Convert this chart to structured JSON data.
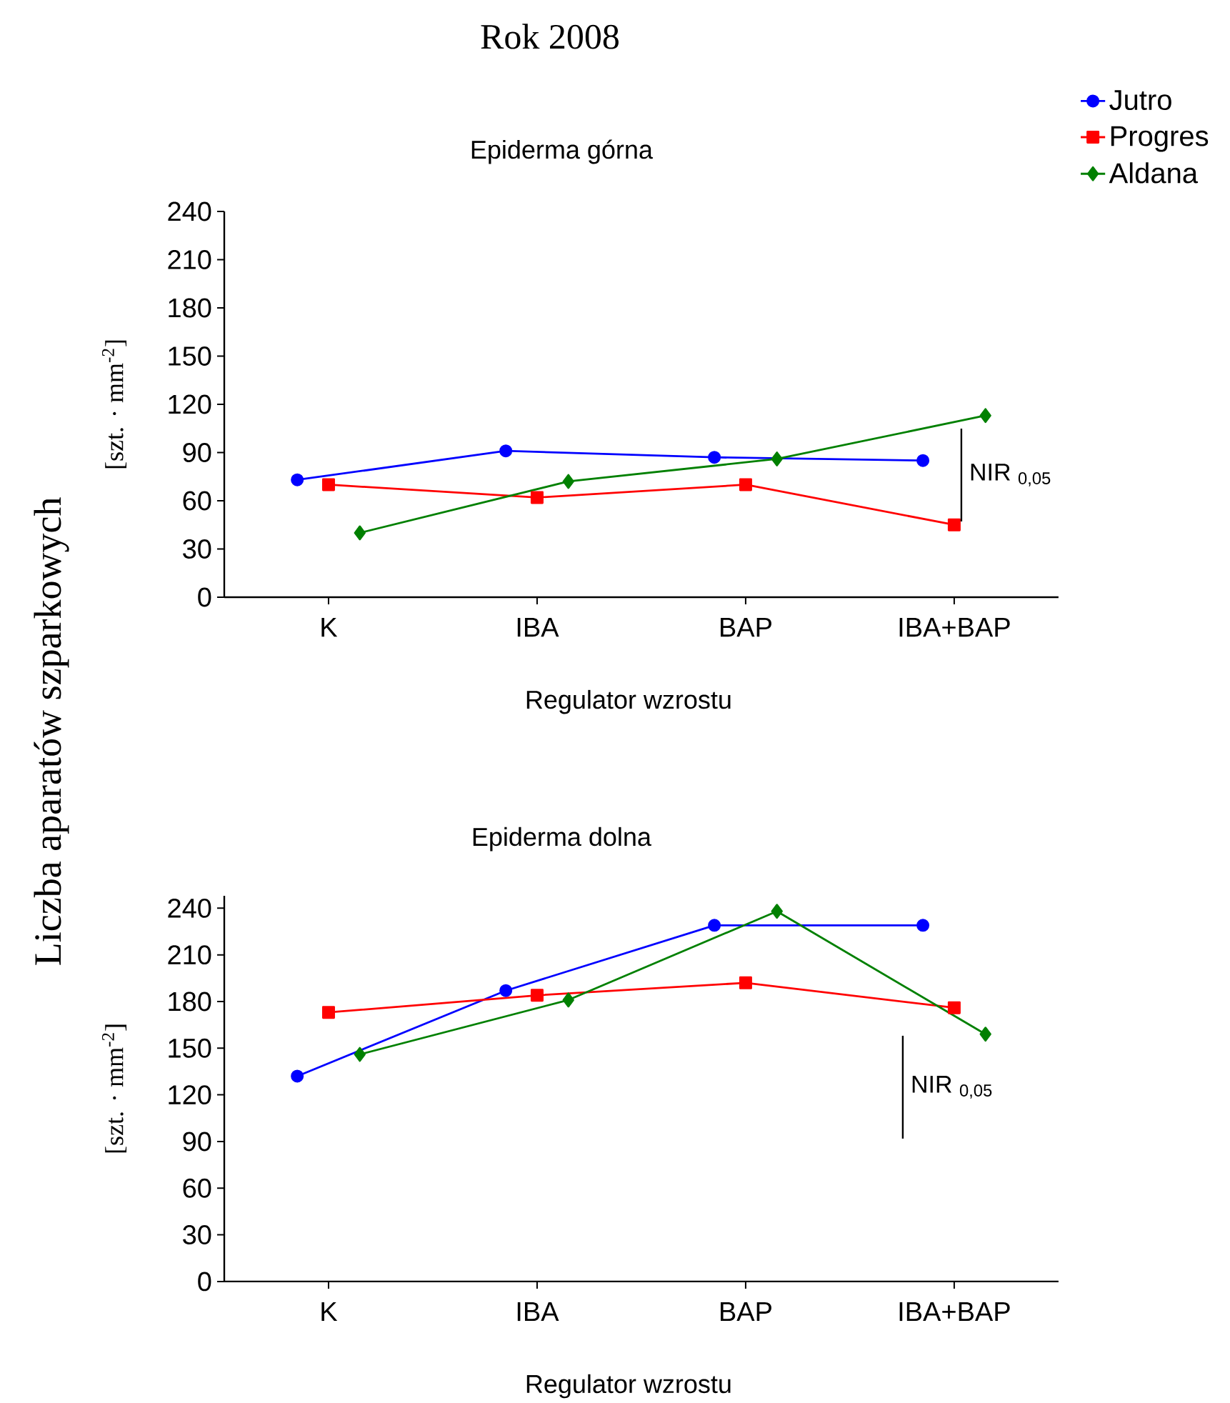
{
  "chart_data": [
    {
      "type": "line",
      "title": "Epiderma górna",
      "xlabel": "Regulator wzrostu",
      "ylabel": "[szt. · mm$^{-2}$]",
      "annotations": [
        "Rok 2008",
        "Liczba aparatów szparkowych",
        "NIR $_{0,05}$"
      ],
      "categories": [
        "K",
        "IBA",
        "BAP",
        "IBA+BAP"
      ],
      "ylim": [
        0,
        240
      ],
      "yticks": [
        0,
        30,
        60,
        90,
        120,
        150,
        180,
        210,
        240
      ],
      "legend": "top right",
      "line_style": "solid",
      "series": [
        {
          "name": "Jutro",
          "color": "#0000ff",
          "marker": "circle",
          "values": [
            73,
            91,
            87,
            85
          ]
        },
        {
          "name": "Progres",
          "color": "#ff0000",
          "marker": "square",
          "values": [
            70,
            62,
            70,
            45
          ]
        },
        {
          "name": "Aldana",
          "color": "#008000",
          "marker": "diamond",
          "values": [
            40,
            72,
            86,
            113
          ]
        }
      ]
    },
    {
      "type": "line",
      "title": "Epiderma dolna",
      "xlabel": "Regulator wzrostu",
      "ylabel": "[szt. · mm$^{-2}$]",
      "annotations": [
        "NIR $_{0,05}$"
      ],
      "categories": [
        "K",
        "IBA",
        "BAP",
        "IBA+BAP"
      ],
      "ylim": [
        0,
        248
      ],
      "yticks": [
        0,
        30,
        60,
        90,
        120,
        150,
        180,
        210,
        240
      ],
      "line_style": "solid",
      "series": [
        {
          "color": "#0000ff",
          "marker": "circle",
          "values": [
            132,
            187,
            229,
            229
          ]
        },
        {
          "color": "#ff0000",
          "marker": "square",
          "values": [
            173,
            184,
            192,
            176
          ]
        },
        {
          "color": "#008000",
          "marker": "diamond",
          "values": [
            146,
            181,
            238,
            159
          ]
        }
      ]
    }
  ]
}
